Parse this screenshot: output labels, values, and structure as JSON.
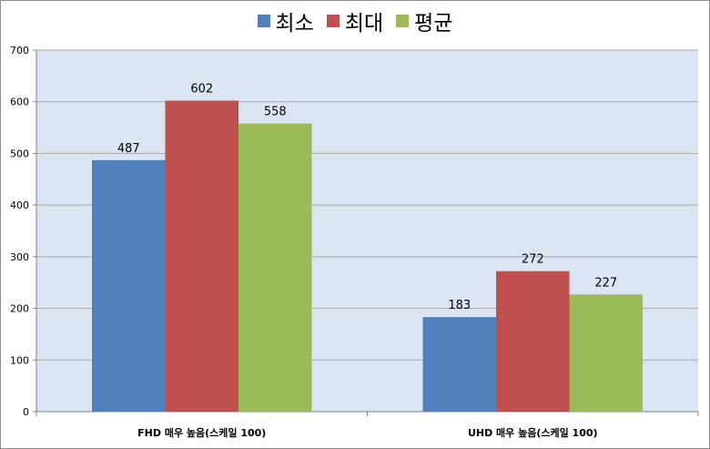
{
  "chart_data": {
    "type": "bar",
    "categories": [
      "FHD 매우 높음(스케일 100)",
      "UHD 매우 높음(스케일 100)"
    ],
    "series": [
      {
        "name": "최소",
        "values": [
          487,
          183
        ],
        "color": "#4f81bd"
      },
      {
        "name": "최대",
        "values": [
          602,
          272
        ],
        "color": "#c0504d"
      },
      {
        "name": "평균",
        "values": [
          558,
          227
        ],
        "color": "#9bbb59"
      }
    ],
    "title": "",
    "xlabel": "",
    "ylabel": "",
    "ylim": [
      0,
      700
    ],
    "yticks": [
      "0",
      "100",
      "200",
      "300",
      "400",
      "500",
      "600",
      "700"
    ],
    "grid": true,
    "legend": "top-center",
    "plot_background": "#dce6f2",
    "gridline_color": "#a6a6a6"
  }
}
